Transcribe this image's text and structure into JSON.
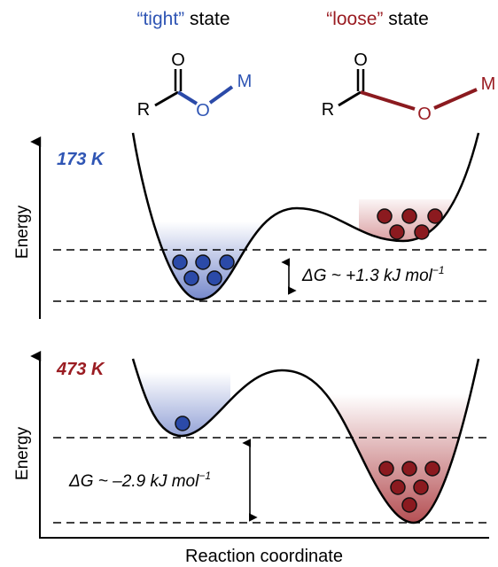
{
  "header": {
    "tight": {
      "quoted": "“tight”",
      "rest": "state"
    },
    "loose": {
      "quoted": "“loose”",
      "rest": "state"
    }
  },
  "molecule": {
    "carbonyl_o": "O",
    "ether_o": "O",
    "r": "R",
    "m": "M"
  },
  "panels": [
    {
      "temperature": "173 K",
      "axis_label": "Energy",
      "delta_g": {
        "symbol": "ΔG",
        "value": " ~ +1.3 kJ mol",
        "exponent": "−1"
      },
      "tight_particles": 5,
      "loose_particles": 5
    },
    {
      "temperature": "473 K",
      "axis_label": "Energy",
      "delta_g": {
        "symbol": "ΔG",
        "value": " ~ –2.9 kJ mol",
        "exponent": "−1"
      },
      "tight_particles": 1,
      "loose_particles": 6
    }
  ],
  "x_axis_label": "Reaction coordinate",
  "colors": {
    "tight": "#2b4aa8",
    "tight_text": "#2f55b4",
    "loose": "#8b1a1f",
    "loose_text": "#9a1c22",
    "particle_outline": "#111111",
    "line": "#000000"
  }
}
